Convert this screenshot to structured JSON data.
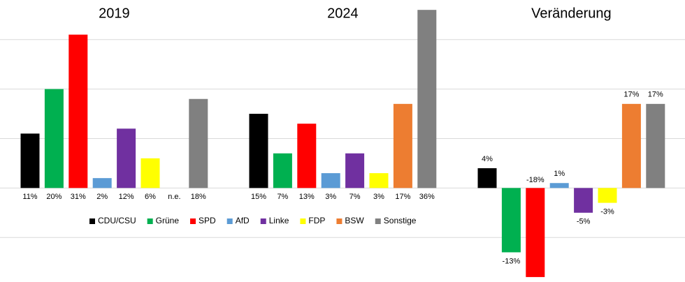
{
  "chart_data": [
    {
      "type": "bar",
      "title": "2019",
      "categories": [
        "CDU/CSU",
        "Grüne",
        "SPD",
        "AfD",
        "Linke",
        "FDP",
        "BSW",
        "Sonstige"
      ],
      "colors": [
        "#000000",
        "#00b050",
        "#ff0000",
        "#5b9bd5",
        "#7030a0",
        "#ffff00",
        "#ed7d31",
        "#808080"
      ],
      "values": [
        11,
        20,
        31,
        2,
        12,
        6,
        null,
        18
      ],
      "value_labels": [
        "11%",
        "20%",
        "31%",
        "2%",
        "12%",
        "6%",
        "n.e.",
        "18%"
      ],
      "ylim": [
        -19,
        38
      ],
      "yticks": [
        -10,
        0,
        10,
        20,
        30
      ],
      "grid": true,
      "legend": "bottom"
    },
    {
      "type": "bar",
      "title": "2024",
      "categories": [
        "CDU/CSU",
        "Grüne",
        "SPD",
        "AfD",
        "Linke",
        "FDP",
        "BSW",
        "Sonstige"
      ],
      "colors": [
        "#000000",
        "#00b050",
        "#ff0000",
        "#5b9bd5",
        "#7030a0",
        "#ffff00",
        "#ed7d31",
        "#808080"
      ],
      "values": [
        15,
        7,
        13,
        3,
        7,
        3,
        17,
        36
      ],
      "value_labels": [
        "15%",
        "7%",
        "13%",
        "3%",
        "7%",
        "3%",
        "17%",
        "36%"
      ],
      "ylim": [
        -19,
        38
      ],
      "yticks": [
        -10,
        0,
        10,
        20,
        30
      ],
      "grid": true
    },
    {
      "type": "bar",
      "title": "Veränderung",
      "categories": [
        "CDU/CSU",
        "Grüne",
        "SPD",
        "AfD",
        "Linke",
        "FDP",
        "BSW",
        "Sonstige"
      ],
      "colors": [
        "#000000",
        "#00b050",
        "#ff0000",
        "#5b9bd5",
        "#7030a0",
        "#ffff00",
        "#ed7d31",
        "#808080"
      ],
      "values": [
        4,
        -13,
        -18,
        1,
        -5,
        -3,
        17,
        17
      ],
      "value_labels": [
        "4%",
        "-13%",
        "-18%",
        "1%",
        "-5%",
        "-3%",
        "17%",
        "17%"
      ],
      "ylim": [
        -19,
        38
      ],
      "yticks": [
        -10,
        0,
        10,
        20,
        30
      ],
      "grid": true
    }
  ]
}
